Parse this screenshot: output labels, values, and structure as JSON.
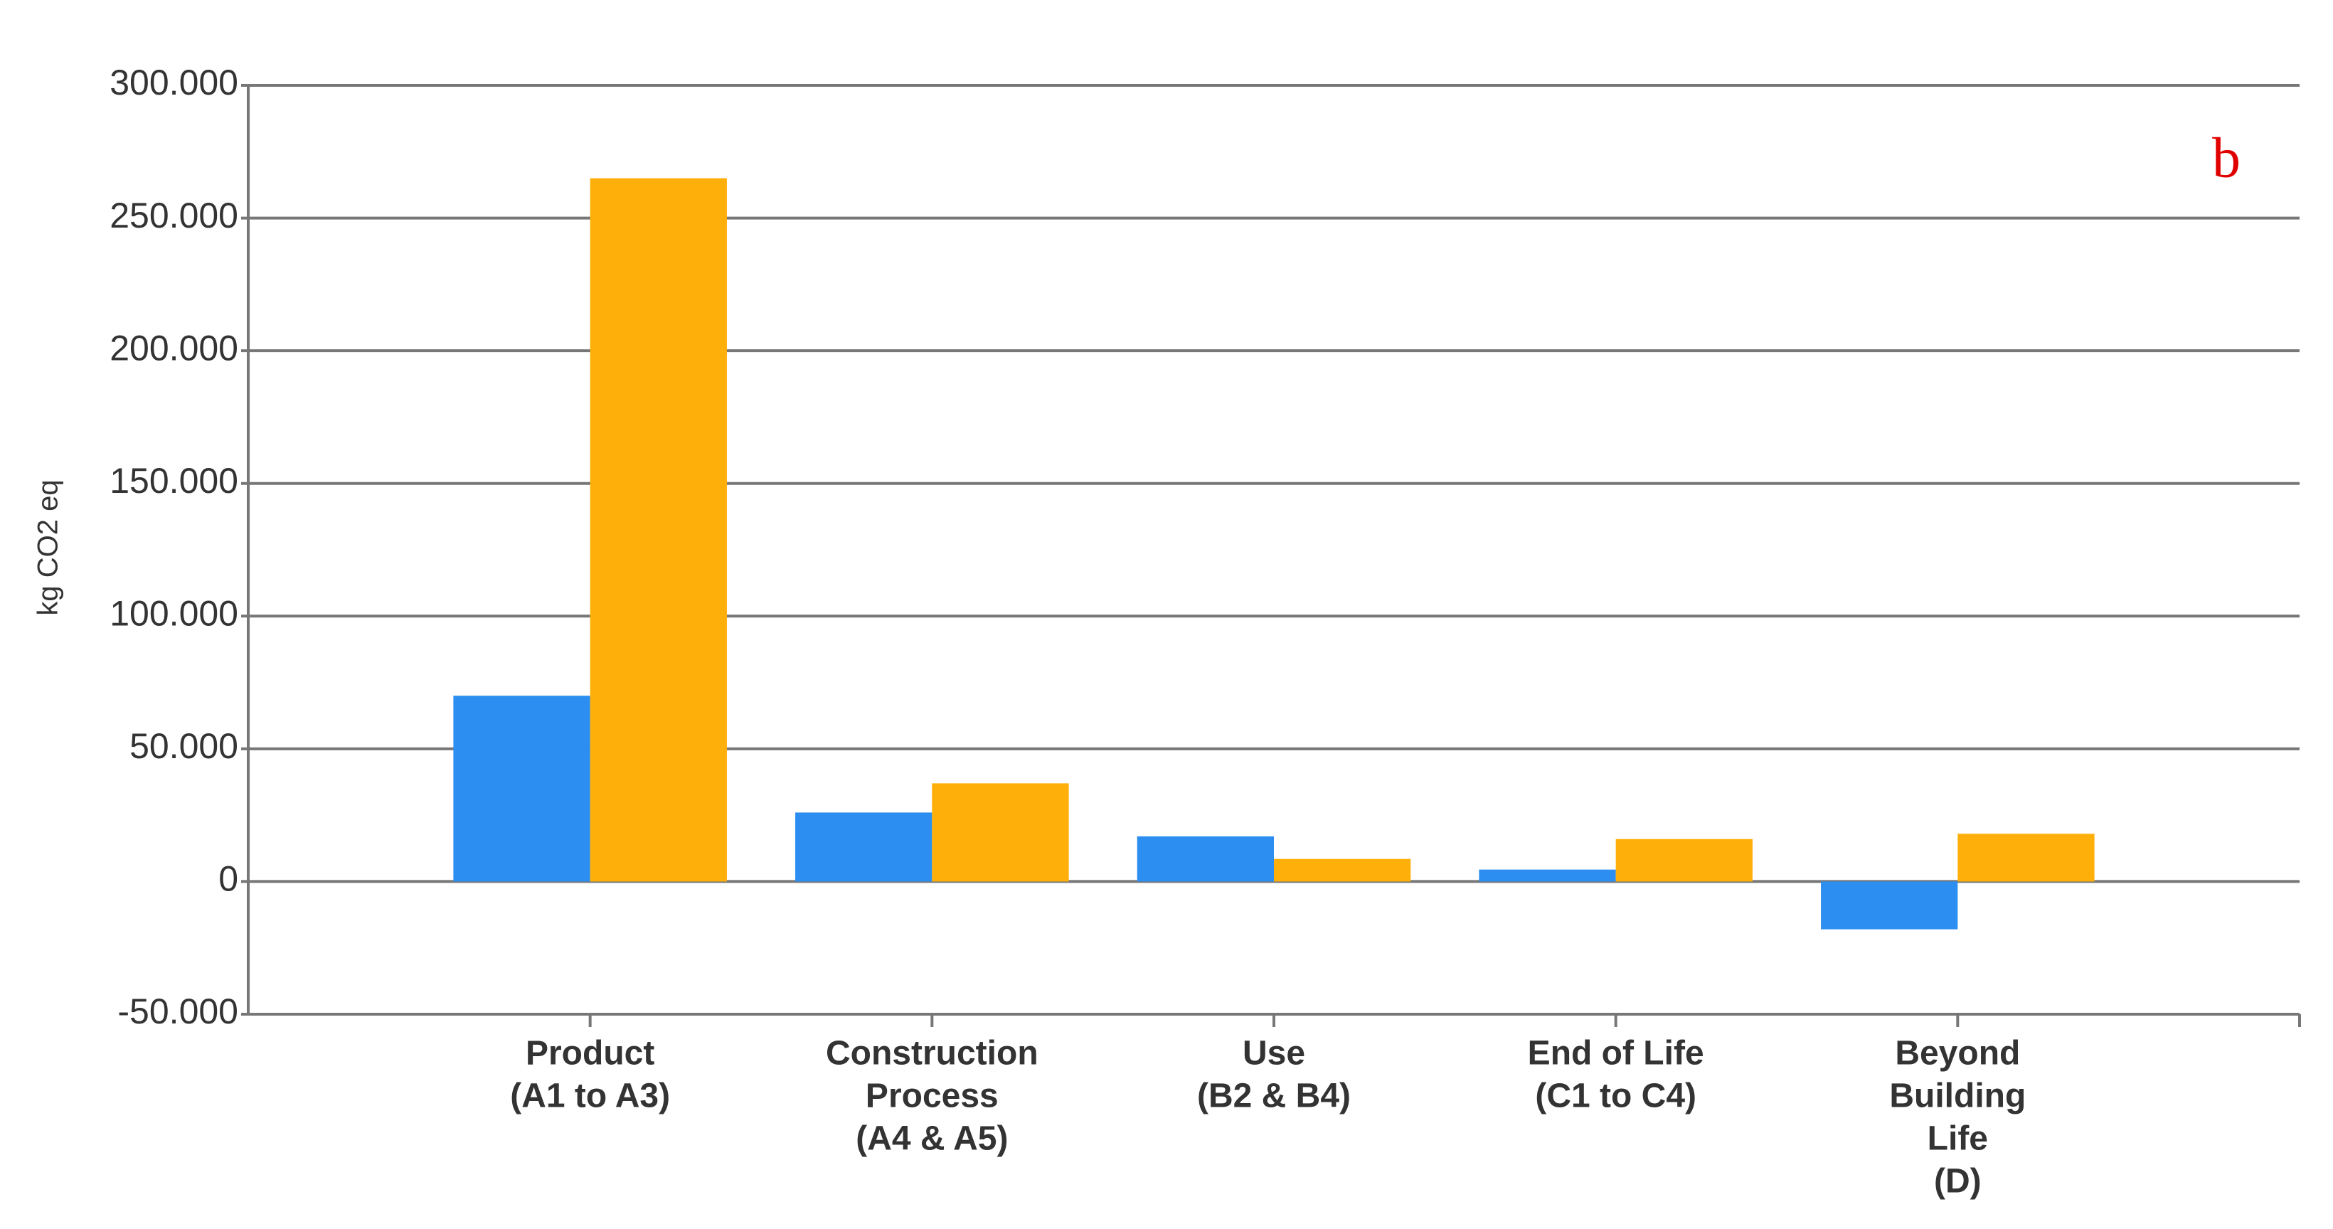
{
  "chart_data": {
    "type": "bar",
    "y_label": "kg CO2 eq",
    "annotation": "b",
    "annotation_color": "#e00000",
    "categories": [
      [
        "Product",
        "(A1 to A3)"
      ],
      [
        "Construction",
        "Process",
        "(A4 & A5)"
      ],
      [
        "Use",
        "(B2 & B4)"
      ],
      [
        "End of Life",
        "(C1 to C4)"
      ],
      [
        "Beyond",
        "Building",
        "Life",
        "(D)"
      ]
    ],
    "series": [
      {
        "color": "#2b8ef0",
        "values": [
          70000,
          26000,
          17000,
          4500,
          -18000
        ]
      },
      {
        "color": "#ffaf0a",
        "values": [
          265000,
          37000,
          8500,
          16000,
          18000
        ]
      }
    ],
    "ylim": [
      -50000,
      300000
    ],
    "yticks": [
      {
        "value": -50000,
        "label": "-50.000"
      },
      0,
      {
        "value": 50000,
        "label": "50.000"
      },
      {
        "value": 100000,
        "label": "100.000"
      },
      {
        "value": 150000,
        "label": "150.000"
      },
      {
        "value": 200000,
        "label": "200.000"
      },
      {
        "value": 250000,
        "label": "250.000"
      },
      {
        "value": 300000,
        "label": "300.000"
      }
    ],
    "grid": true
  }
}
